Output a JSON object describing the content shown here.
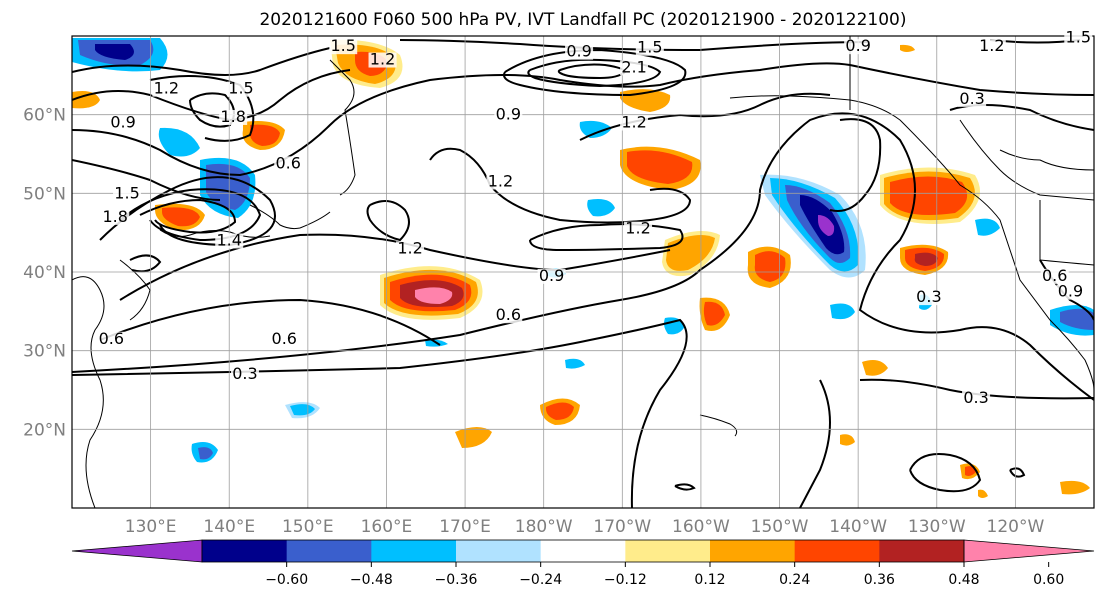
{
  "title": "2020121600 F060 500 hPa PV, IVT Landfall PC (2020121900 - 2020122100)",
  "map": {
    "lat_ticks": [
      "60°N",
      "50°N",
      "40°N",
      "30°N",
      "20°N"
    ],
    "lon_ticks": [
      "130°E",
      "140°E",
      "150°E",
      "160°E",
      "170°E",
      "180°W",
      "170°W",
      "160°W",
      "150°W",
      "140°W",
      "130°W",
      "120°W"
    ],
    "lat_range": [
      10,
      70
    ],
    "lon_range_east": [
      120,
      250
    ]
  },
  "colorbar": {
    "ticks": [
      "−0.60",
      "−0.48",
      "−0.36",
      "−0.24",
      "−0.12",
      "0.12",
      "0.24",
      "0.36",
      "0.48",
      "0.60"
    ],
    "colors": [
      "#9a32cd",
      "#00008b",
      "#3a5fcd",
      "#00bfff",
      "#b0e2ff",
      "#ffffff",
      "#ffec8b",
      "#ffa500",
      "#ff4500",
      "#b22222",
      "#ff82ab"
    ]
  },
  "contour_labels": [
    {
      "text": "1.5",
      "lon": 154.5,
      "lat": 68.2
    },
    {
      "text": "1.2",
      "lon": 159.5,
      "lat": 66.5
    },
    {
      "text": "0.9",
      "lon": 184.5,
      "lat": 67.5
    },
    {
      "text": "1.5",
      "lon": 193.5,
      "lat": 68.0
    },
    {
      "text": "2.1",
      "lon": 191.5,
      "lat": 65.5
    },
    {
      "text": "0.9",
      "lon": 220.0,
      "lat": 68.2
    },
    {
      "text": "1.2",
      "lon": 237.0,
      "lat": 68.2
    },
    {
      "text": "1.5",
      "lon": 248.0,
      "lat": 69.3
    },
    {
      "text": "1.2",
      "lon": 132.0,
      "lat": 62.8
    },
    {
      "text": "1.5",
      "lon": 141.5,
      "lat": 62.8
    },
    {
      "text": "1.8",
      "lon": 140.5,
      "lat": 59.2
    },
    {
      "text": "0.9",
      "lon": 126.5,
      "lat": 58.5
    },
    {
      "text": "0.6",
      "lon": 147.5,
      "lat": 53.3
    },
    {
      "text": "0.9",
      "lon": 175.5,
      "lat": 59.5
    },
    {
      "text": "1.2",
      "lon": 191.5,
      "lat": 58.5
    },
    {
      "text": "1.2",
      "lon": 174.5,
      "lat": 51.0
    },
    {
      "text": "1.2",
      "lon": 163.0,
      "lat": 42.5
    },
    {
      "text": "1.2",
      "lon": 192.0,
      "lat": 45.0
    },
    {
      "text": "0.9",
      "lon": 181.0,
      "lat": 39.0
    },
    {
      "text": "0.6",
      "lon": 175.5,
      "lat": 34.0
    },
    {
      "text": "0.6",
      "lon": 147.0,
      "lat": 31.0
    },
    {
      "text": "0.6",
      "lon": 125.0,
      "lat": 31.0
    },
    {
      "text": "0.3",
      "lon": 142.0,
      "lat": 26.5
    },
    {
      "text": "0.3",
      "lon": 229.0,
      "lat": 36.3
    },
    {
      "text": "0.3",
      "lon": 234.5,
      "lat": 61.5
    },
    {
      "text": "0.3",
      "lon": 235.0,
      "lat": 23.5
    },
    {
      "text": "0.6",
      "lon": 245.0,
      "lat": 39.0
    },
    {
      "text": "0.9",
      "lon": 247.0,
      "lat": 37.0
    },
    {
      "text": "1.5",
      "lon": 127.0,
      "lat": 49.5
    },
    {
      "text": "1.8",
      "lon": 125.5,
      "lat": 46.5
    },
    {
      "text": "1.4",
      "lon": 140.0,
      "lat": 43.5
    }
  ]
}
